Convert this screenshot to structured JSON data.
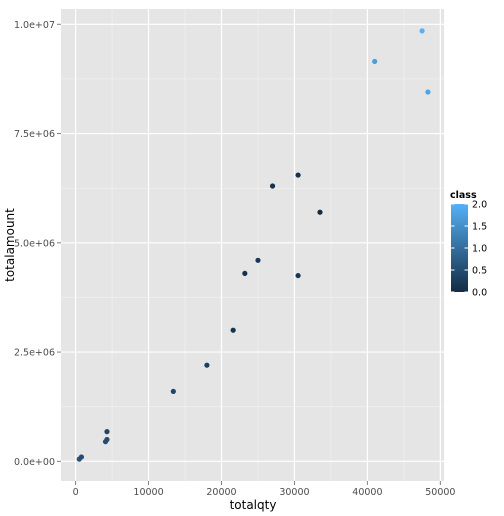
{
  "chart_data": {
    "type": "scatter",
    "title": "",
    "xlabel": "totalqty",
    "ylabel": "totalamount",
    "xlim": [
      -2000,
      50500
    ],
    "ylim": [
      -450000,
      10350000
    ],
    "x_ticks": [
      0,
      10000,
      20000,
      30000,
      40000,
      50000
    ],
    "x_tick_labels": [
      "0",
      "10000",
      "20000",
      "30000",
      "40000",
      "50000"
    ],
    "y_ticks": [
      0,
      2500000,
      5000000,
      7500000,
      10000000
    ],
    "y_tick_labels": [
      "0.0e+00",
      "2.5e+06",
      "5.0e+06",
      "7.5e+06",
      "1.0e+07"
    ],
    "grid": true,
    "legend": {
      "title": "class",
      "position": "right",
      "type": "colorbar",
      "range": [
        0,
        2
      ],
      "labels": [
        "2.0",
        "1.5",
        "1.0",
        "0.5",
        "0.0"
      ],
      "low_color": "#132B43",
      "high_color": "#56B1F7"
    },
    "points": [
      {
        "x": 47500,
        "y": 9850000,
        "class": 2.0
      },
      {
        "x": 41000,
        "y": 9150000,
        "class": 1.7
      },
      {
        "x": 48300,
        "y": 8450000,
        "class": 1.8
      },
      {
        "x": 30500,
        "y": 6550000,
        "class": 0.1
      },
      {
        "x": 27000,
        "y": 6300000,
        "class": 0.1
      },
      {
        "x": 33500,
        "y": 5700000,
        "class": 0.0
      },
      {
        "x": 25000,
        "y": 4600000,
        "class": 0.2
      },
      {
        "x": 23200,
        "y": 4300000,
        "class": 0.1
      },
      {
        "x": 30500,
        "y": 4250000,
        "class": 0.2
      },
      {
        "x": 21600,
        "y": 3000000,
        "class": 0.1
      },
      {
        "x": 18000,
        "y": 2200000,
        "class": 0.3
      },
      {
        "x": 13400,
        "y": 1600000,
        "class": 0.4
      },
      {
        "x": 4300,
        "y": 680000,
        "class": 0.4
      },
      {
        "x": 4300,
        "y": 500000,
        "class": 0.5
      },
      {
        "x": 4100,
        "y": 450000,
        "class": 0.5
      },
      {
        "x": 500,
        "y": 50000,
        "class": 0.6
      },
      {
        "x": 800,
        "y": 100000,
        "class": 0.5
      }
    ]
  }
}
